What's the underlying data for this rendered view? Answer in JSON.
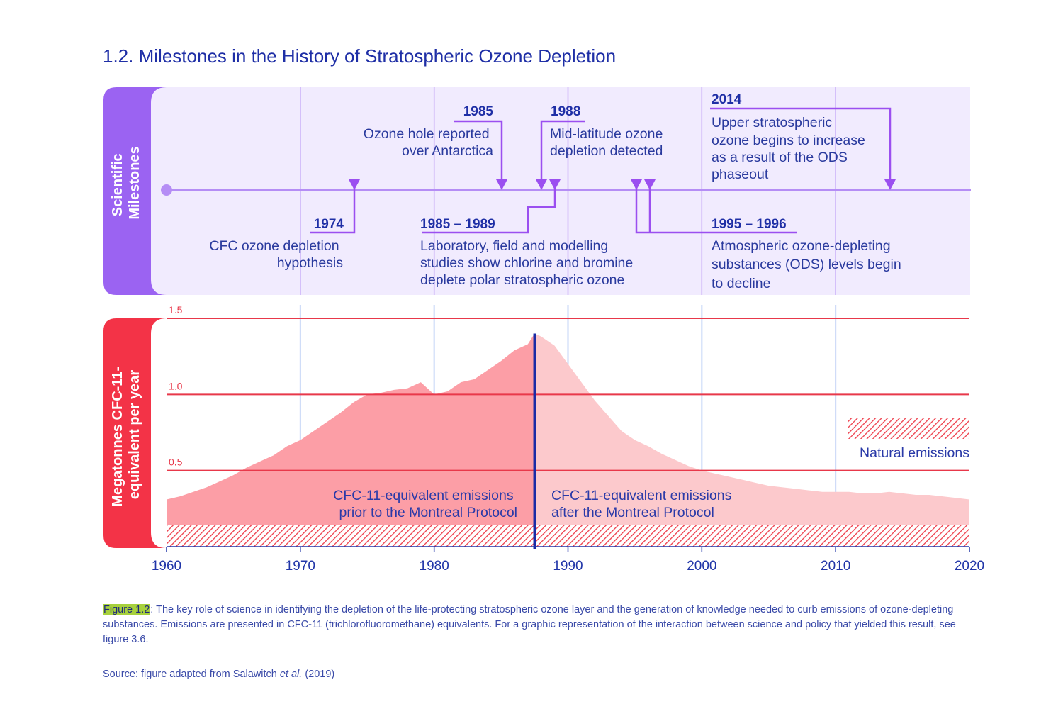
{
  "title": {
    "number": "1.2.",
    "text": "Milestones in the History of Stratospheric Ozone Depletion"
  },
  "milestones_panel": {
    "side_label": [
      "Scientific",
      "Milestones"
    ],
    "entries": [
      {
        "year": "1974",
        "text": [
          "CFC ozone depletion",
          "hypothesis"
        ]
      },
      {
        "year": "1985",
        "text": [
          "Ozone hole reported",
          "over Antarctica"
        ]
      },
      {
        "year": "1985 – 1989",
        "text": [
          "Laboratory, field and modelling",
          "studies show chlorine and bromine",
          "deplete polar stratospheric ozone"
        ]
      },
      {
        "year": "1988",
        "text": [
          "Mid-latitude ozone",
          "depletion detected"
        ]
      },
      {
        "year": "1995 – 1996",
        "text": [
          "Atmospheric ozone-depleting",
          "substances (ODS) levels begin",
          "to decline"
        ]
      },
      {
        "year": "2014",
        "text": [
          "Upper stratospheric",
          "ozone begins to increase",
          "as a result of the ODS",
          "phaseout"
        ]
      }
    ]
  },
  "chart_data": {
    "type": "area",
    "ylabel": [
      "Megatonnes CFC-11-",
      "equivalent per year"
    ],
    "xlim": [
      1960,
      2020
    ],
    "ylim": [
      0,
      1.5
    ],
    "x_ticks": [
      "1960",
      "1970",
      "1980",
      "1990",
      "2000",
      "2010",
      "2020"
    ],
    "y_ticks": [
      "0.5",
      "1.0",
      "1.5"
    ],
    "montreal_protocol_year": 1987.5,
    "series": [
      {
        "name": "CFC-11-equivalent emissions",
        "x": [
          1960,
          1961,
          1962,
          1963,
          1964,
          1965,
          1966,
          1967,
          1968,
          1969,
          1970,
          1971,
          1972,
          1973,
          1974,
          1975,
          1976,
          1977,
          1978,
          1979,
          1980,
          1981,
          1982,
          1983,
          1984,
          1985,
          1986,
          1987,
          1987.5,
          1988,
          1989,
          1990,
          1991,
          1992,
          1993,
          1994,
          1995,
          1996,
          1997,
          1998,
          1999,
          2000,
          2001,
          2002,
          2003,
          2004,
          2005,
          2006,
          2007,
          2008,
          2009,
          2010,
          2011,
          2012,
          2013,
          2014,
          2015,
          2016,
          2017,
          2018,
          2019,
          2020
        ],
        "values": [
          0.31,
          0.33,
          0.36,
          0.39,
          0.43,
          0.47,
          0.52,
          0.56,
          0.6,
          0.66,
          0.7,
          0.76,
          0.82,
          0.88,
          0.95,
          1.0,
          1.01,
          1.03,
          1.04,
          1.08,
          1.0,
          1.02,
          1.08,
          1.1,
          1.16,
          1.22,
          1.29,
          1.33,
          1.4,
          1.38,
          1.32,
          1.2,
          1.08,
          0.96,
          0.86,
          0.76,
          0.7,
          0.66,
          0.61,
          0.57,
          0.53,
          0.5,
          0.48,
          0.46,
          0.44,
          0.42,
          0.4,
          0.39,
          0.38,
          0.37,
          0.36,
          0.36,
          0.36,
          0.35,
          0.35,
          0.36,
          0.35,
          0.34,
          0.34,
          0.33,
          0.32,
          0.31
        ]
      }
    ],
    "natural_emissions": {
      "value": 0.14,
      "label": "Natural emissions"
    },
    "annotations": {
      "before": [
        "CFC-11-equivalent emissions",
        "prior to the Montreal Protocol"
      ],
      "after": [
        "CFC-11-equivalent emissions",
        "after the Montreal Protocol"
      ]
    }
  },
  "caption": {
    "label": "Figure 1.2",
    "text": ": The key role of science in identifying the depletion of the life-protecting stratospheric ozone layer and the generation of knowledge needed to curb emissions of ozone-depleting substances. Emissions are presented in CFC-11 (trichlorofluoromethane) equivalents. For a graphic representation of the interaction between science and policy that yielded this result, see figure 3.6."
  },
  "source": {
    "prefix": "Source: figure adapted from Salawitch ",
    "etal": "et al.",
    "suffix": " (2019)"
  },
  "colors": {
    "title": "#1f2fa6",
    "year_label": "#1f2fa6",
    "milestone_text": "#2a3a9e",
    "milestone_panel_bg": "#f1ebfe",
    "milestone_sidebar": "#9b63f2",
    "milestone_line": "#b58df5",
    "milestone_connector": "#9b4ff0",
    "chart_sidebar": "#f33347",
    "area_before": "#fc9ea6",
    "area_after": "#fcc9cc",
    "gridline_red": "#e8384a",
    "vertical_grid": "#c6d6f7",
    "protocol_line": "#1a2ba6",
    "x_axis_text": "#2035a8",
    "hatch": "#ee3b48",
    "annotation_text": "#2a3aa8"
  }
}
